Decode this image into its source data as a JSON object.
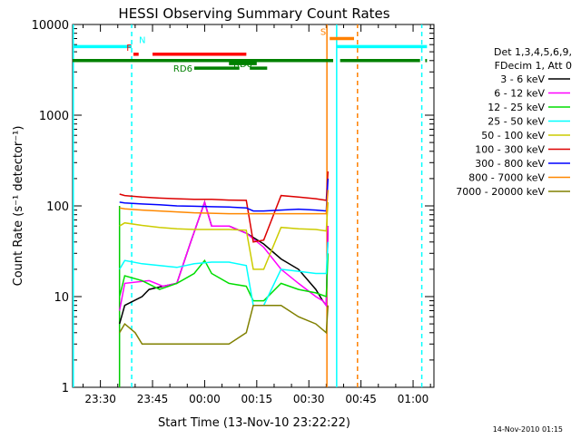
{
  "chart_data": {
    "type": "line",
    "title": "HESSI Observing Summary Count Rates",
    "xlabel": "Start Time (13-Nov-10 23:22:22)",
    "ylabel": "Count Rate (s⁻¹ detector⁻¹)",
    "x_unit": "minutes after 13-Nov-10 23:22:22",
    "xlim": [
      0,
      104
    ],
    "ylim": [
      1,
      10000
    ],
    "y_scale": "log",
    "x_ticks": [
      {
        "value": 8,
        "label": "23:30"
      },
      {
        "value": 23,
        "label": "23:45"
      },
      {
        "value": 38,
        "label": "00:00"
      },
      {
        "value": 53,
        "label": "00:15"
      },
      {
        "value": 68,
        "label": "00:30"
      },
      {
        "value": 83,
        "label": "00:45"
      },
      {
        "value": 98,
        "label": "01:00"
      }
    ],
    "y_ticks": [
      {
        "value": 1,
        "label": "1"
      },
      {
        "value": 10,
        "label": "10"
      },
      {
        "value": 100,
        "label": "100"
      },
      {
        "value": 1000,
        "label": "1000"
      },
      {
        "value": 10000,
        "label": "10000"
      }
    ],
    "legend_header": [
      "Det 1,3,4,5,6,9,",
      "FDecim 1, Att 0"
    ],
    "legend_position": "right",
    "footer_date": "14-Nov-2010 01:15",
    "series": [
      {
        "name": "3 - 6 keV",
        "color": "#000000",
        "x": [
          13.5,
          15,
          20,
          22,
          26,
          30,
          34,
          38,
          40,
          45,
          50,
          55,
          60,
          65,
          70,
          72,
          73,
          73.5
        ],
        "y": [
          5,
          8,
          10,
          12,
          13,
          14,
          40,
          110,
          60,
          60,
          50,
          38,
          26,
          20,
          12,
          9,
          8,
          60
        ]
      },
      {
        "name": "6 - 12 keV",
        "color": "#ff00ff",
        "x": [
          13.5,
          15,
          22,
          26,
          30,
          34,
          38,
          40,
          45,
          50,
          55,
          60,
          65,
          70,
          72,
          73,
          73.5
        ],
        "y": [
          7,
          14,
          15,
          13,
          14,
          40,
          110,
          60,
          60,
          50,
          35,
          20,
          14,
          10,
          9,
          8,
          60
        ]
      },
      {
        "name": "12 - 25 keV",
        "color": "#00dd00",
        "x": [
          13.5,
          15,
          20,
          25,
          30,
          35,
          38,
          40,
          45,
          50,
          52,
          55,
          60,
          65,
          70,
          73,
          73.5
        ],
        "y": [
          10,
          17,
          15,
          12,
          14,
          18,
          25,
          18,
          14,
          13,
          9,
          9,
          14,
          12,
          11,
          10,
          30
        ]
      },
      {
        "name": "25 - 50 keV",
        "color": "#00ffff",
        "x": [
          13.5,
          15,
          20,
          25,
          30,
          35,
          40,
          45,
          50,
          52,
          55,
          60,
          65,
          70,
          73,
          73.5
        ],
        "y": [
          20,
          25,
          23,
          22,
          21,
          23,
          24,
          24,
          22,
          8,
          8,
          20,
          19,
          18,
          18,
          40
        ]
      },
      {
        "name": "50 - 100 keV",
        "color": "#cccc00",
        "x": [
          13.5,
          15,
          20,
          25,
          30,
          35,
          40,
          45,
          50,
          52,
          55,
          60,
          65,
          70,
          73,
          73.5
        ],
        "y": [
          60,
          65,
          61,
          58,
          56,
          55,
          55,
          55,
          54,
          20,
          20,
          58,
          56,
          55,
          53,
          110
        ]
      },
      {
        "name": "100 - 300 keV",
        "color": "#dd0000",
        "x": [
          13.5,
          15,
          20,
          25,
          30,
          35,
          40,
          45,
          50,
          52,
          55,
          60,
          65,
          70,
          73,
          73.5
        ],
        "y": [
          135,
          130,
          125,
          122,
          120,
          118,
          118,
          116,
          115,
          40,
          42,
          130,
          125,
          120,
          115,
          240
        ]
      },
      {
        "name": "300 - 800 keV",
        "color": "#0000ff",
        "x": [
          13.5,
          15,
          20,
          25,
          30,
          35,
          40,
          45,
          50,
          52,
          55,
          60,
          65,
          70,
          73,
          73.5
        ],
        "y": [
          110,
          108,
          105,
          103,
          100,
          99,
          98,
          97,
          95,
          88,
          88,
          90,
          92,
          90,
          88,
          200
        ]
      },
      {
        "name": "800 - 7000 keV",
        "color": "#ff8800",
        "x": [
          13.5,
          15,
          20,
          25,
          30,
          35,
          40,
          45,
          50,
          55,
          60,
          65,
          70,
          73,
          73.5
        ],
        "y": [
          95,
          93,
          90,
          88,
          86,
          84,
          83,
          82,
          82,
          82,
          82,
          82,
          82,
          82,
          150
        ]
      },
      {
        "name": "7000 - 20000 keV",
        "color": "#808000",
        "x": [
          13.5,
          15,
          18,
          20,
          25,
          30,
          35,
          40,
          45,
          50,
          52,
          55,
          60,
          65,
          70,
          73,
          73.5
        ],
        "y": [
          4,
          5,
          4,
          3,
          3,
          3,
          3,
          3,
          3,
          4,
          8,
          8,
          8,
          6,
          5,
          4,
          8
        ]
      }
    ],
    "state_bars": [
      {
        "label": "N",
        "color": "#00ffff",
        "level": 5700,
        "segments": [
          [
            0,
            17
          ],
          [
            76,
            102
          ]
        ]
      },
      {
        "label": "F",
        "color": "#ff0000",
        "level": 4700,
        "segments": [
          [
            17.5,
            19
          ],
          [
            23,
            50
          ]
        ]
      },
      {
        "label": "",
        "color": "#008000",
        "level": 4000,
        "segments": [
          [
            0,
            75
          ],
          [
            77,
            100
          ],
          [
            101.5,
            102
          ]
        ]
      },
      {
        "label": "RD0",
        "color": "#008000",
        "level": 3700,
        "segments": [
          [
            45,
            53
          ]
        ]
      },
      {
        "label": "RD6",
        "color": "#008000",
        "level": 3300,
        "segments": [
          [
            35,
            48
          ],
          [
            51,
            56
          ]
        ]
      },
      {
        "label": "S",
        "color": "#ff8000",
        "level": 7000,
        "segments": [
          [
            74,
            81
          ]
        ]
      }
    ],
    "vertical_markers": [
      {
        "x": 0.2,
        "color": "#00ffff",
        "style": "solid"
      },
      {
        "x": 17,
        "color": "#00ffff",
        "style": "dashed"
      },
      {
        "x": 13.5,
        "color": "#00cc00",
        "style": "solid",
        "max": 100
      },
      {
        "x": 73.2,
        "color": "#ff8000",
        "style": "solid"
      },
      {
        "x": 76,
        "color": "#00ffff",
        "style": "solid"
      },
      {
        "x": 82,
        "color": "#ff8000",
        "style": "dashed"
      },
      {
        "x": 100.5,
        "color": "#00ffff",
        "style": "dashed"
      }
    ]
  }
}
